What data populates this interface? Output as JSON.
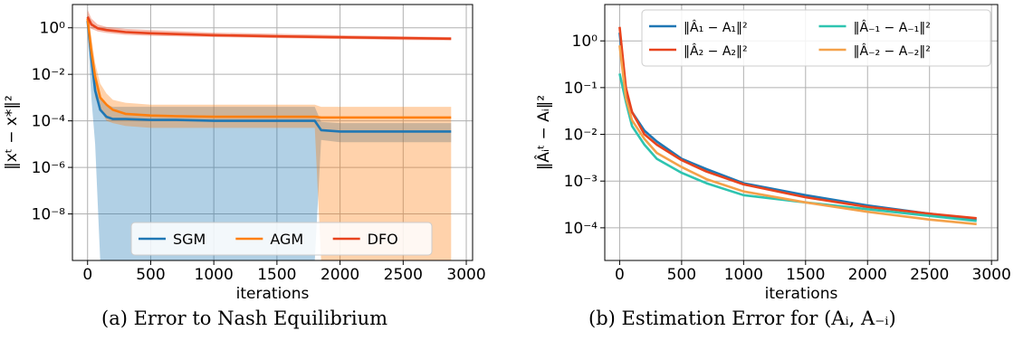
{
  "captions": {
    "a": "(a) Error to Nash Equilibrium",
    "b": "(b)  Estimation Error for (Aᵢ, A₋ᵢ)"
  },
  "chart_data": [
    {
      "type": "line",
      "panel": "a",
      "xlabel": "iterations",
      "ylabel": "‖xᵗ − x*‖²",
      "yscale": "log",
      "xlim": [
        -120,
        3050
      ],
      "ylim": [
        1e-10,
        10
      ],
      "xticks": [
        0,
        500,
        1000,
        1500,
        2000,
        2500,
        3000
      ],
      "yticks": [
        {
          "v": 1,
          "label": "10⁰"
        },
        {
          "v": 0.01,
          "label": "10⁻²"
        },
        {
          "v": 0.0001,
          "label": "10⁻⁴"
        },
        {
          "v": 1e-06,
          "label": "10⁻⁶"
        },
        {
          "v": 1e-08,
          "label": "10⁻⁸"
        }
      ],
      "grid": true,
      "legend_position": "bottom-center",
      "series": [
        {
          "name": "SGM",
          "color": "#1f77b4",
          "x": [
            0,
            30,
            60,
            100,
            150,
            200,
            300,
            500,
            700,
            1000,
            1300,
            1600,
            1800,
            1850,
            2000,
            2500,
            2880
          ],
          "y": [
            2.0,
            0.05,
            0.002,
            0.0003,
            0.00015,
            0.00012,
            0.00012,
            0.00011,
            0.00011,
            0.0001,
            0.0001,
            0.0001,
            0.0001,
            4e-05,
            3.5e-05,
            3.5e-05,
            3.5e-05
          ],
          "band_low": [
            1.0,
            0.001,
            1e-05,
            1e-10,
            1e-10,
            1e-10,
            1e-10,
            1e-10,
            1e-10,
            1e-10,
            1e-10,
            1e-10,
            1e-10,
            1.5e-05,
            1.2e-05,
            1.2e-05,
            1.2e-05
          ],
          "band_high": [
            4.0,
            0.2,
            0.01,
            0.001,
            0.0005,
            0.0004,
            0.0004,
            0.0004,
            0.0004,
            0.0004,
            0.0004,
            0.0004,
            0.0004,
            9e-05,
            8e-05,
            8e-05,
            8e-05
          ]
        },
        {
          "name": "AGM",
          "color": "#ff7f0e",
          "x": [
            0,
            30,
            60,
            100,
            150,
            200,
            300,
            500,
            700,
            1000,
            1300,
            1600,
            1800,
            1850,
            2000,
            2500,
            2880
          ],
          "y": [
            2.5,
            0.1,
            0.008,
            0.001,
            0.0005,
            0.0003,
            0.0002,
            0.00017,
            0.00016,
            0.00015,
            0.00015,
            0.00015,
            0.00015,
            0.00014,
            0.00014,
            0.00014,
            0.00014
          ],
          "band_low": [
            1.2,
            0.02,
            0.001,
            0.0003,
            0.0001,
            8e-05,
            6e-05,
            5e-05,
            5e-05,
            5e-05,
            5e-05,
            5e-05,
            5e-05,
            1e-10,
            1e-10,
            1e-10,
            1e-10
          ],
          "band_high": [
            5.0,
            0.4,
            0.03,
            0.004,
            0.0015,
            0.0008,
            0.0006,
            0.0005,
            0.0005,
            0.0005,
            0.0005,
            0.0005,
            0.0005,
            0.0004,
            0.0004,
            0.0004,
            0.0004
          ]
        },
        {
          "name": "DFO",
          "color": "#e8431d",
          "x": [
            0,
            30,
            80,
            150,
            300,
            500,
            1000,
            1500,
            2000,
            2500,
            2880
          ],
          "y": [
            3.0,
            1.4,
            0.95,
            0.8,
            0.65,
            0.58,
            0.48,
            0.43,
            0.39,
            0.36,
            0.34
          ],
          "band_low": [
            1.5,
            0.9,
            0.7,
            0.6,
            0.5,
            0.45,
            0.4,
            0.36,
            0.33,
            0.3,
            0.29
          ],
          "band_high": [
            6.0,
            2.5,
            1.4,
            1.1,
            0.9,
            0.8,
            0.62,
            0.55,
            0.48,
            0.43,
            0.4
          ]
        }
      ]
    },
    {
      "type": "line",
      "panel": "b",
      "xlabel": "iterations",
      "ylabel": "‖Âᵢᵗ − Aᵢ‖²",
      "yscale": "log",
      "xlim": [
        -120,
        3050
      ],
      "ylim": [
        2e-05,
        6
      ],
      "xticks": [
        0,
        500,
        1000,
        1500,
        2000,
        2500,
        3000
      ],
      "yticks": [
        {
          "v": 1,
          "label": "10⁰"
        },
        {
          "v": 0.1,
          "label": "10⁻¹"
        },
        {
          "v": 0.01,
          "label": "10⁻²"
        },
        {
          "v": 0.001,
          "label": "10⁻³"
        },
        {
          "v": 0.0001,
          "label": "10⁻⁴"
        }
      ],
      "grid": true,
      "legend_position": "top-right",
      "series": [
        {
          "name": "‖Â₁ − A₁‖²",
          "color": "#1f77b4",
          "x": [
            0,
            50,
            100,
            200,
            300,
            500,
            700,
            1000,
            1500,
            2000,
            2500,
            2880
          ],
          "y": [
            1.5,
            0.08,
            0.03,
            0.012,
            0.007,
            0.003,
            0.0018,
            0.0009,
            0.0005,
            0.0003,
            0.0002,
            0.00015
          ]
        },
        {
          "name": "‖Â₂ − A₂‖²",
          "color": "#e8431d",
          "x": [
            0,
            50,
            100,
            200,
            300,
            500,
            700,
            1000,
            1500,
            2000,
            2500,
            2880
          ],
          "y": [
            2.0,
            0.1,
            0.03,
            0.01,
            0.006,
            0.0028,
            0.0016,
            0.00085,
            0.00045,
            0.00028,
            0.0002,
            0.00016
          ]
        },
        {
          "name": "‖Â₋₁ − A₋₁‖²",
          "color": "#2ec4b0",
          "x": [
            0,
            50,
            100,
            200,
            300,
            500,
            700,
            1000,
            1500,
            2000,
            2500,
            2880
          ],
          "y": [
            0.2,
            0.05,
            0.015,
            0.006,
            0.003,
            0.0015,
            0.0009,
            0.0005,
            0.00035,
            0.00025,
            0.00018,
            0.00014
          ]
        },
        {
          "name": "‖Â₋₂ − A₋₂‖²",
          "color": "#f4a14a",
          "x": [
            0,
            50,
            100,
            200,
            300,
            500,
            700,
            1000,
            1500,
            2000,
            2500,
            2880
          ],
          "y": [
            0.8,
            0.06,
            0.02,
            0.008,
            0.004,
            0.002,
            0.0011,
            0.0006,
            0.00035,
            0.00022,
            0.00015,
            0.00012
          ]
        }
      ]
    }
  ]
}
